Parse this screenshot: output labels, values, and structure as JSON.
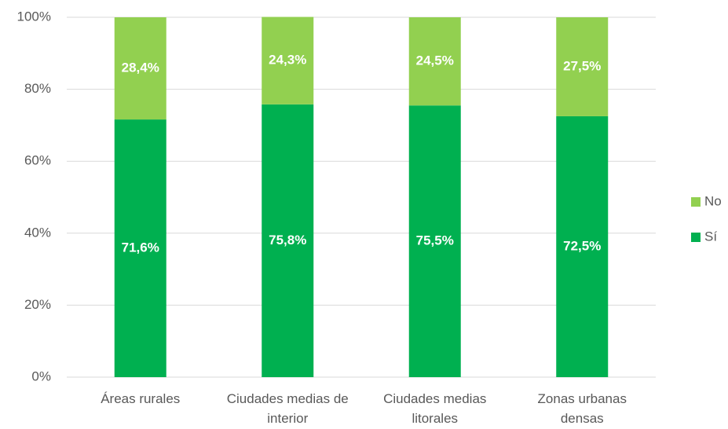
{
  "chart_data": {
    "type": "stacked_bar",
    "categories": [
      "Áreas rurales",
      "Ciudades medias de interior",
      "Ciudades medias litorales",
      "Zonas urbanas densas"
    ],
    "series": [
      {
        "name": "Sí",
        "color": "#00b050",
        "values": [
          71.6,
          75.8,
          75.5,
          72.5
        ],
        "value_labels": [
          "71,6%",
          "75,8%",
          "75,5%",
          "72,5%"
        ]
      },
      {
        "name": "No",
        "color": "#92d050",
        "values": [
          28.4,
          24.3,
          24.5,
          27.5
        ],
        "value_labels": [
          "28,4%",
          "24,3%",
          "24,5%",
          "27,5%"
        ]
      }
    ],
    "ylim": [
      0,
      100
    ],
    "yticks": [
      {
        "value": 0,
        "label": "0%"
      },
      {
        "value": 20,
        "label": "20%"
      },
      {
        "value": 40,
        "label": "40%"
      },
      {
        "value": 60,
        "label": "60%"
      },
      {
        "value": 80,
        "label": "80%"
      },
      {
        "value": 100,
        "label": "100%"
      }
    ],
    "grid": true,
    "legend": "right"
  }
}
